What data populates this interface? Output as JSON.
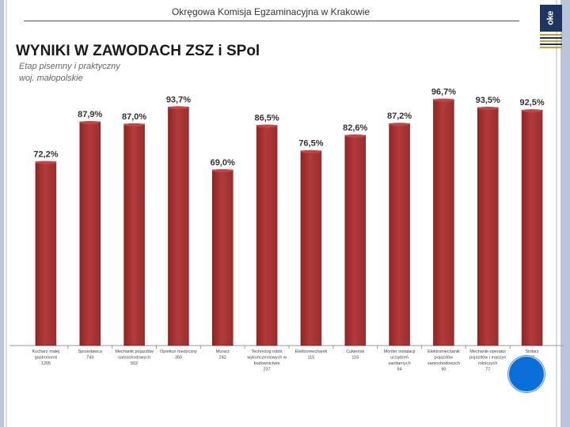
{
  "header": {
    "text": "Okręgowa Komisja Egzaminacyjna w Krakowie"
  },
  "logo": {
    "sign": "oke"
  },
  "chart_data": {
    "type": "bar",
    "title": "WYNIKI W ZAWODACH ZSZ i SPol",
    "subtitle": [
      "Etap pisemny i praktyczny",
      "woj. małopolskie"
    ],
    "ylim": [
      0,
      100
    ],
    "grid": false,
    "legend": "none",
    "bar_color": "#b23a3a",
    "categories": [
      [
        "Kucharz małej",
        "gastronomii",
        "1205"
      ],
      [
        "Sprzedawca",
        "743"
      ],
      [
        "Mechanik pojazdów",
        "samochodowych",
        "502"
      ],
      [
        "Opiekun medyczny",
        "350"
      ],
      [
        "Murarz",
        "242"
      ],
      [
        "Technolog robót",
        "wykończeniowych w",
        "budownictwie",
        "237"
      ],
      [
        "Elektromechanik",
        "115"
      ],
      [
        "Cukiernik",
        "115"
      ],
      [
        "Monter instalacji",
        "urządzeń",
        "sanitarnych",
        "94"
      ],
      [
        "Elektromechanik",
        "pojazdów",
        "samochodowych",
        "90"
      ],
      [
        "Mechanik-operator",
        "pojazdów i maszyn",
        "rolniczych",
        "77"
      ],
      [
        "Stolarz",
        "67"
      ]
    ],
    "values": [
      72.2,
      87.9,
      87.0,
      93.7,
      69.0,
      86.5,
      76.5,
      82.6,
      87.2,
      96.7,
      93.5,
      92.5
    ],
    "value_labels": [
      "72,2%",
      "87,9%",
      "87,0%",
      "93,7%",
      "69,0%",
      "86,5%",
      "76,5%",
      "82,6%",
      "87,2%",
      "96,7%",
      "93,5%",
      "92,5%"
    ]
  }
}
